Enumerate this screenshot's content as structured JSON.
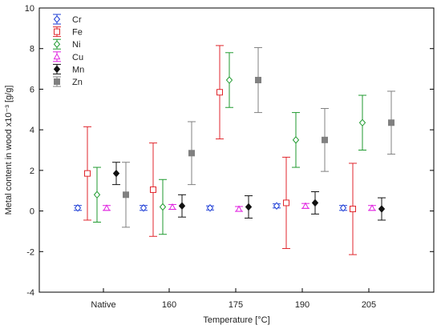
{
  "chart_data": {
    "type": "scatter",
    "title": "",
    "xlabel": "Temperature [°C]",
    "ylabel": "Metal content in wood x10⁻³ [g/g]",
    "ylim": [
      -4,
      10
    ],
    "yticks": [
      "-4",
      "-2",
      "0",
      "2",
      "4",
      "6",
      "8",
      "10"
    ],
    "categories": [
      "Native",
      "160",
      "175",
      "190",
      "205"
    ],
    "grid": false,
    "legend_position": "top-left",
    "series": [
      {
        "name": "Cr",
        "color": "#1f3fd6",
        "marker": "diamond-open",
        "values": [
          0.15,
          0.15,
          0.15,
          0.25,
          0.15
        ],
        "errors": [
          0.12,
          0.12,
          0.1,
          0.1,
          0.12
        ]
      },
      {
        "name": "Fe",
        "color": "#e0262c",
        "marker": "square-open",
        "values": [
          1.85,
          1.05,
          5.85,
          0.4,
          0.1
        ],
        "errors": [
          2.3,
          2.3,
          2.3,
          2.25,
          2.25
        ]
      },
      {
        "name": "Ni",
        "color": "#1f9a2f",
        "marker": "diamond-open",
        "values": [
          0.8,
          0.2,
          6.45,
          3.5,
          4.35
        ],
        "errors": [
          1.35,
          1.35,
          1.35,
          1.35,
          1.35
        ]
      },
      {
        "name": "Cu",
        "color": "#e020e0",
        "marker": "triangle-open",
        "values": [
          0.15,
          0.2,
          0.1,
          0.25,
          0.15
        ],
        "errors": [
          0.12,
          0.12,
          0.12,
          0.12,
          0.12
        ]
      },
      {
        "name": "Mn",
        "color": "#111111",
        "marker": "diamond-filled",
        "values": [
          1.85,
          0.25,
          0.2,
          0.4,
          0.1
        ],
        "errors": [
          0.55,
          0.55,
          0.55,
          0.55,
          0.55
        ]
      },
      {
        "name": "Zn",
        "color": "#808080",
        "marker": "square-filled",
        "values": [
          0.8,
          2.85,
          6.45,
          3.5,
          4.35
        ],
        "errors": [
          1.6,
          1.55,
          1.6,
          1.55,
          1.55
        ]
      }
    ]
  }
}
